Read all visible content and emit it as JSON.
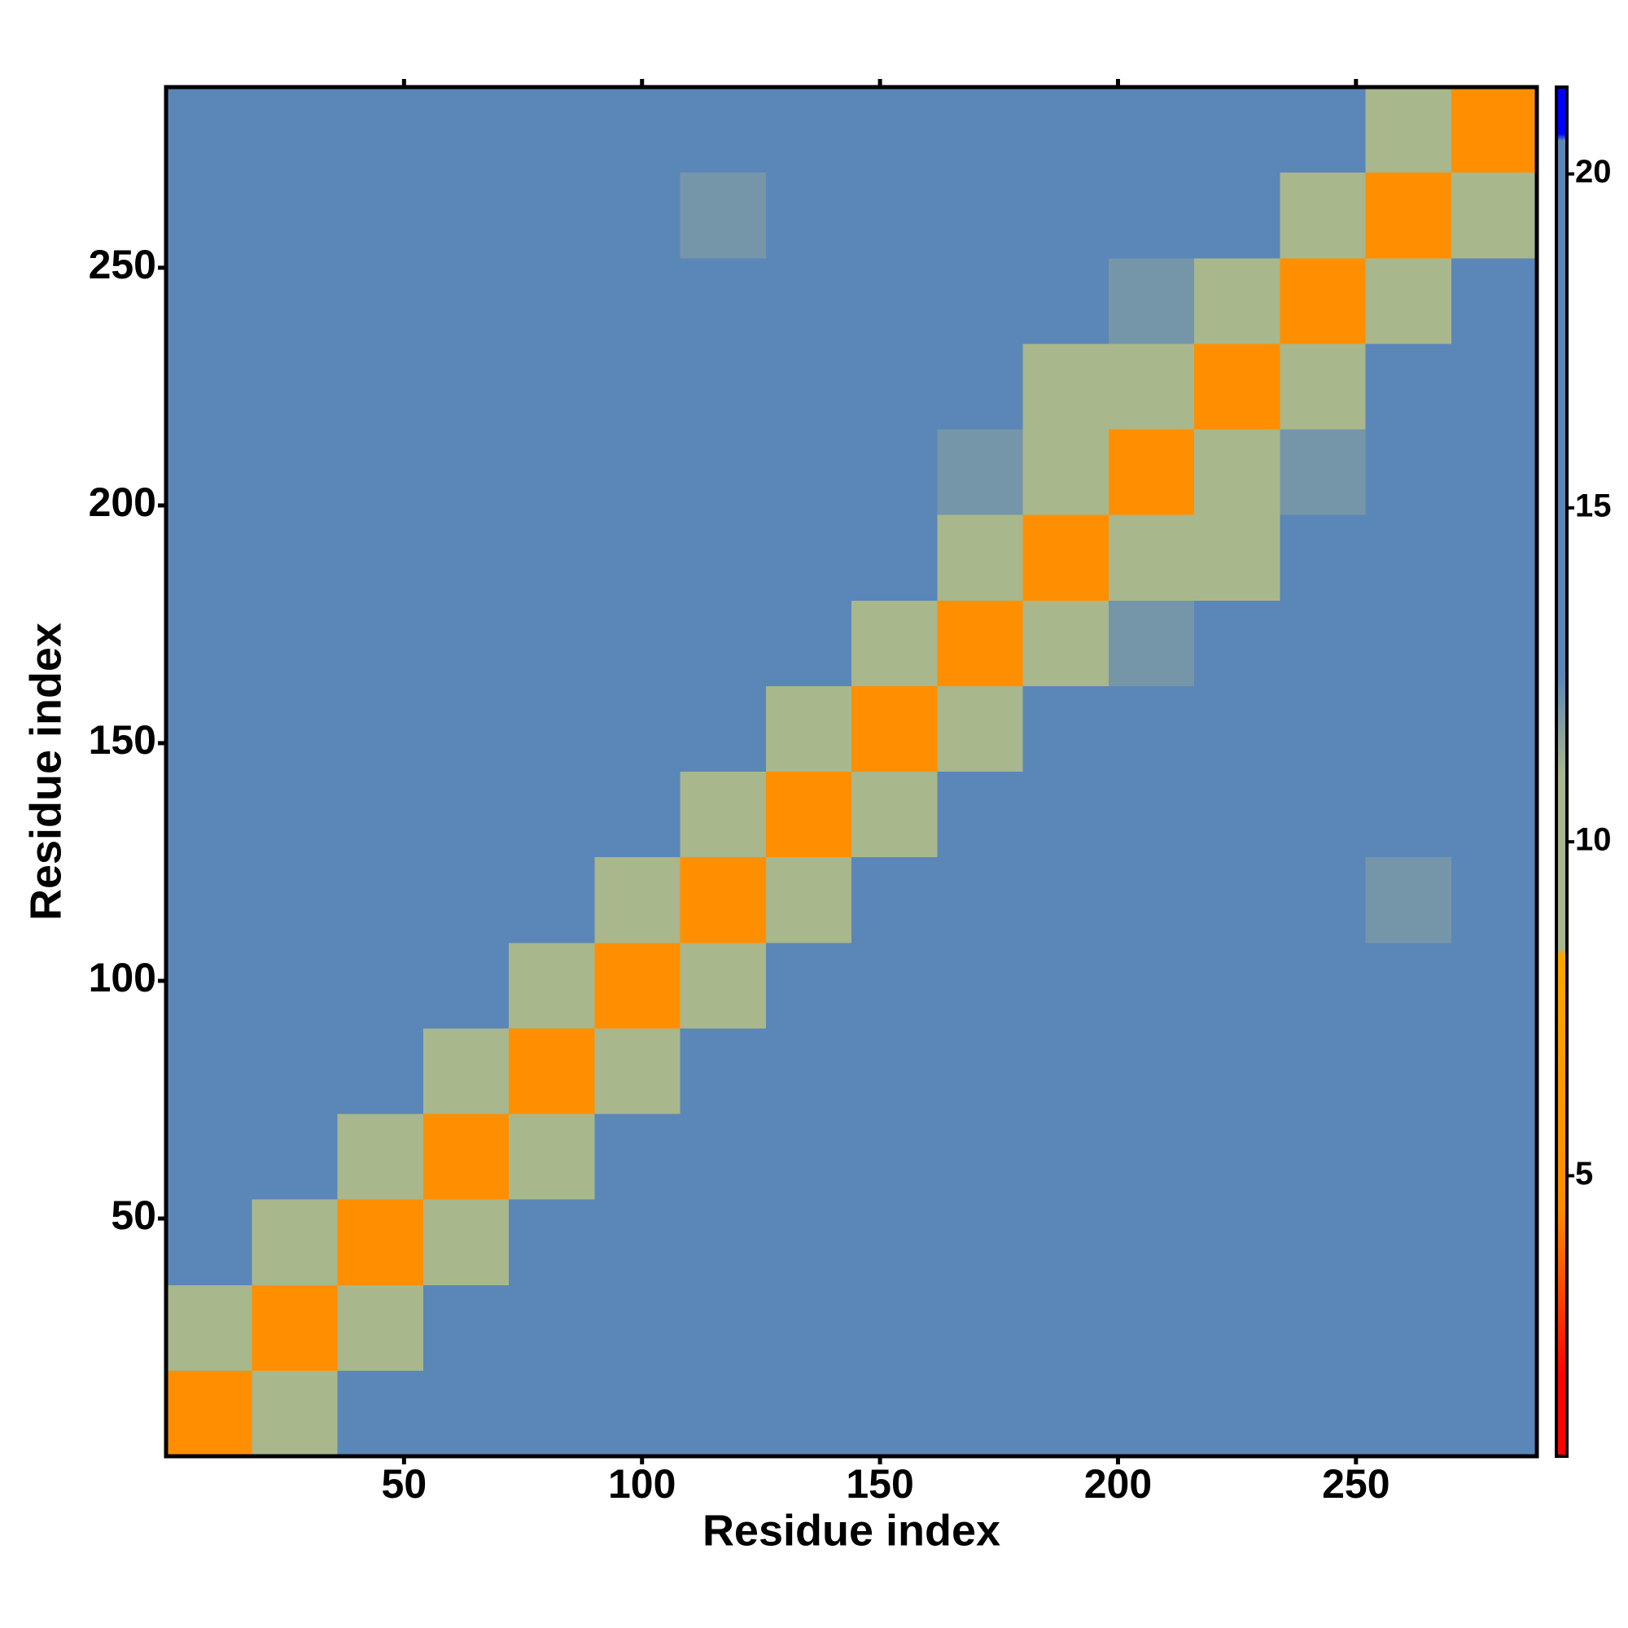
{
  "chart_data": {
    "type": "heatmap",
    "x_label": "Residue index",
    "y_label": "Residue index",
    "bins": [
      0,
      18,
      36,
      54,
      72,
      90,
      108,
      126,
      144,
      162,
      180,
      198,
      216,
      234,
      252,
      270,
      288
    ],
    "xlim": [
      0,
      288
    ],
    "ylim": [
      0,
      288
    ],
    "xticks": [
      50,
      100,
      150,
      200,
      250
    ],
    "yticks": [
      50,
      100,
      150,
      200,
      250
    ],
    "z": [
      [
        5,
        11,
        14,
        16,
        17,
        17,
        17,
        18,
        19,
        19,
        18,
        18,
        19,
        17,
        18,
        20
      ],
      [
        11,
        5,
        11,
        14,
        15,
        17,
        17,
        18,
        18,
        19,
        18,
        17,
        18,
        16,
        18,
        20
      ],
      [
        14,
        11,
        5,
        10,
        14,
        16,
        17,
        17,
        18,
        18,
        18,
        17,
        17,
        17,
        18,
        20
      ],
      [
        16,
        14,
        10,
        5,
        11,
        14,
        16,
        18,
        17,
        17,
        18,
        17,
        17,
        18,
        17,
        20
      ],
      [
        17,
        15,
        14,
        11,
        5,
        10,
        14,
        17,
        17,
        17,
        18,
        17,
        17,
        17,
        17,
        19
      ],
      [
        17,
        17,
        16,
        14,
        10,
        5,
        11,
        14,
        16,
        16,
        18,
        17,
        17,
        16,
        13,
        19
      ],
      [
        17,
        17,
        17,
        16,
        14,
        11,
        5,
        11,
        14,
        16,
        17,
        17,
        16,
        15,
        12,
        19
      ],
      [
        18,
        18,
        17,
        18,
        17,
        14,
        11,
        5,
        11,
        14,
        15,
        15,
        14,
        13,
        14,
        18
      ],
      [
        19,
        18,
        18,
        17,
        17,
        16,
        14,
        11,
        5,
        11,
        13,
        14,
        14,
        14,
        16,
        18
      ],
      [
        19,
        19,
        18,
        17,
        17,
        16,
        16,
        14,
        11,
        5,
        11,
        12,
        13,
        14,
        16,
        18
      ],
      [
        18,
        18,
        18,
        18,
        18,
        18,
        17,
        15,
        13,
        11,
        5,
        10,
        11,
        14,
        16,
        19
      ],
      [
        18,
        17,
        17,
        17,
        17,
        17,
        17,
        15,
        14,
        12,
        10,
        5,
        10,
        12,
        15,
        19
      ],
      [
        19,
        18,
        17,
        17,
        17,
        17,
        16,
        14,
        14,
        13,
        11,
        10,
        5,
        11,
        13,
        18
      ],
      [
        17,
        16,
        17,
        18,
        17,
        16,
        15,
        13,
        14,
        14,
        14,
        12,
        11,
        5,
        11,
        16
      ],
      [
        18,
        18,
        18,
        17,
        17,
        13,
        12,
        14,
        16,
        16,
        16,
        15,
        13,
        11,
        5,
        11
      ],
      [
        20,
        20,
        20,
        20,
        19,
        19,
        19,
        18,
        18,
        18,
        19,
        19,
        18,
        16,
        11,
        5
      ]
    ],
    "colorbar_lim": [
      0.8,
      21.3
    ],
    "colorbar_ticks": [
      5,
      10,
      15,
      20
    ],
    "colorscale": [
      [
        0.8,
        "#ff0000"
      ],
      [
        2,
        "#ff0000"
      ],
      [
        4.5,
        "#ff8c00"
      ],
      [
        8.3,
        "#ffa500"
      ],
      [
        8.4,
        "#a9b78c"
      ],
      [
        11,
        "#a9b78c"
      ],
      [
        12.5,
        "#5b86b8"
      ],
      [
        20.5,
        "#5b86b8"
      ],
      [
        20.6,
        "#0000ff"
      ],
      [
        21.3,
        "#0000ff"
      ]
    ]
  }
}
